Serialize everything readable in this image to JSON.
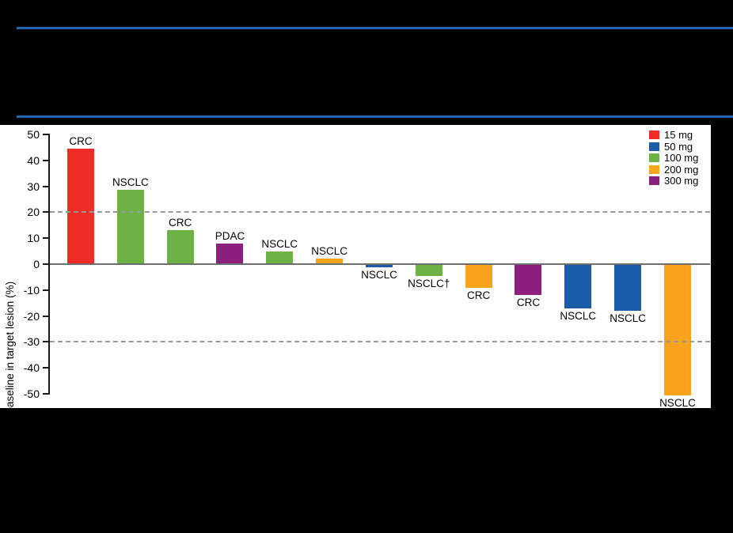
{
  "header": {
    "rule_color": "#2565AE",
    "background": "#000000"
  },
  "chart_data": {
    "type": "bar",
    "title": "",
    "ylabel": "Best change from baseline in target lesion (%)",
    "ylim": [
      -50,
      50
    ],
    "yticks": [
      50,
      40,
      30,
      20,
      10,
      0,
      -10,
      -20,
      -30,
      -40,
      -50
    ],
    "reference_lines": [
      20,
      -30
    ],
    "grid": "dashed horizontal reference lines at +20 and -30 only",
    "legend_position": "top-right",
    "legend": [
      {
        "label": "15 mg",
        "color": "#EE2B24"
      },
      {
        "label": "50 mg",
        "color": "#1A5CA8"
      },
      {
        "label": "100 mg",
        "color": "#6CB344"
      },
      {
        "label": "200 mg",
        "color": "#FAA41B"
      },
      {
        "label": "300 mg",
        "color": "#8D1F7F"
      }
    ],
    "bars": [
      {
        "label": "CRC",
        "dose": "15 mg",
        "value": 44.5
      },
      {
        "label": "NSCLC",
        "dose": "100 mg",
        "value": 28.5
      },
      {
        "label": "CRC",
        "dose": "100 mg",
        "value": 13
      },
      {
        "label": "PDAC",
        "dose": "300 mg",
        "value": 8
      },
      {
        "label": "NSCLC",
        "dose": "100 mg",
        "value": 5
      },
      {
        "label": "NSCLC",
        "dose": "200 mg",
        "value": 2
      },
      {
        "label": "NSCLC",
        "dose": "50 mg",
        "value": -1.3
      },
      {
        "label": "NSCLC†",
        "dose": "100 mg",
        "value": -4.5
      },
      {
        "label": "CRC",
        "dose": "200 mg",
        "value": -9
      },
      {
        "label": "CRC",
        "dose": "300 mg",
        "value": -12
      },
      {
        "label": "NSCLC",
        "dose": "50 mg",
        "value": -17
      },
      {
        "label": "NSCLC",
        "dose": "50 mg",
        "value": -18
      },
      {
        "label": "NSCLC",
        "dose": "200 mg",
        "value": -50.5
      }
    ],
    "axis_color": "#1a1a1a",
    "zero_line_color": "#6e6e6e",
    "reference_line_color": "#9a9a9a"
  }
}
